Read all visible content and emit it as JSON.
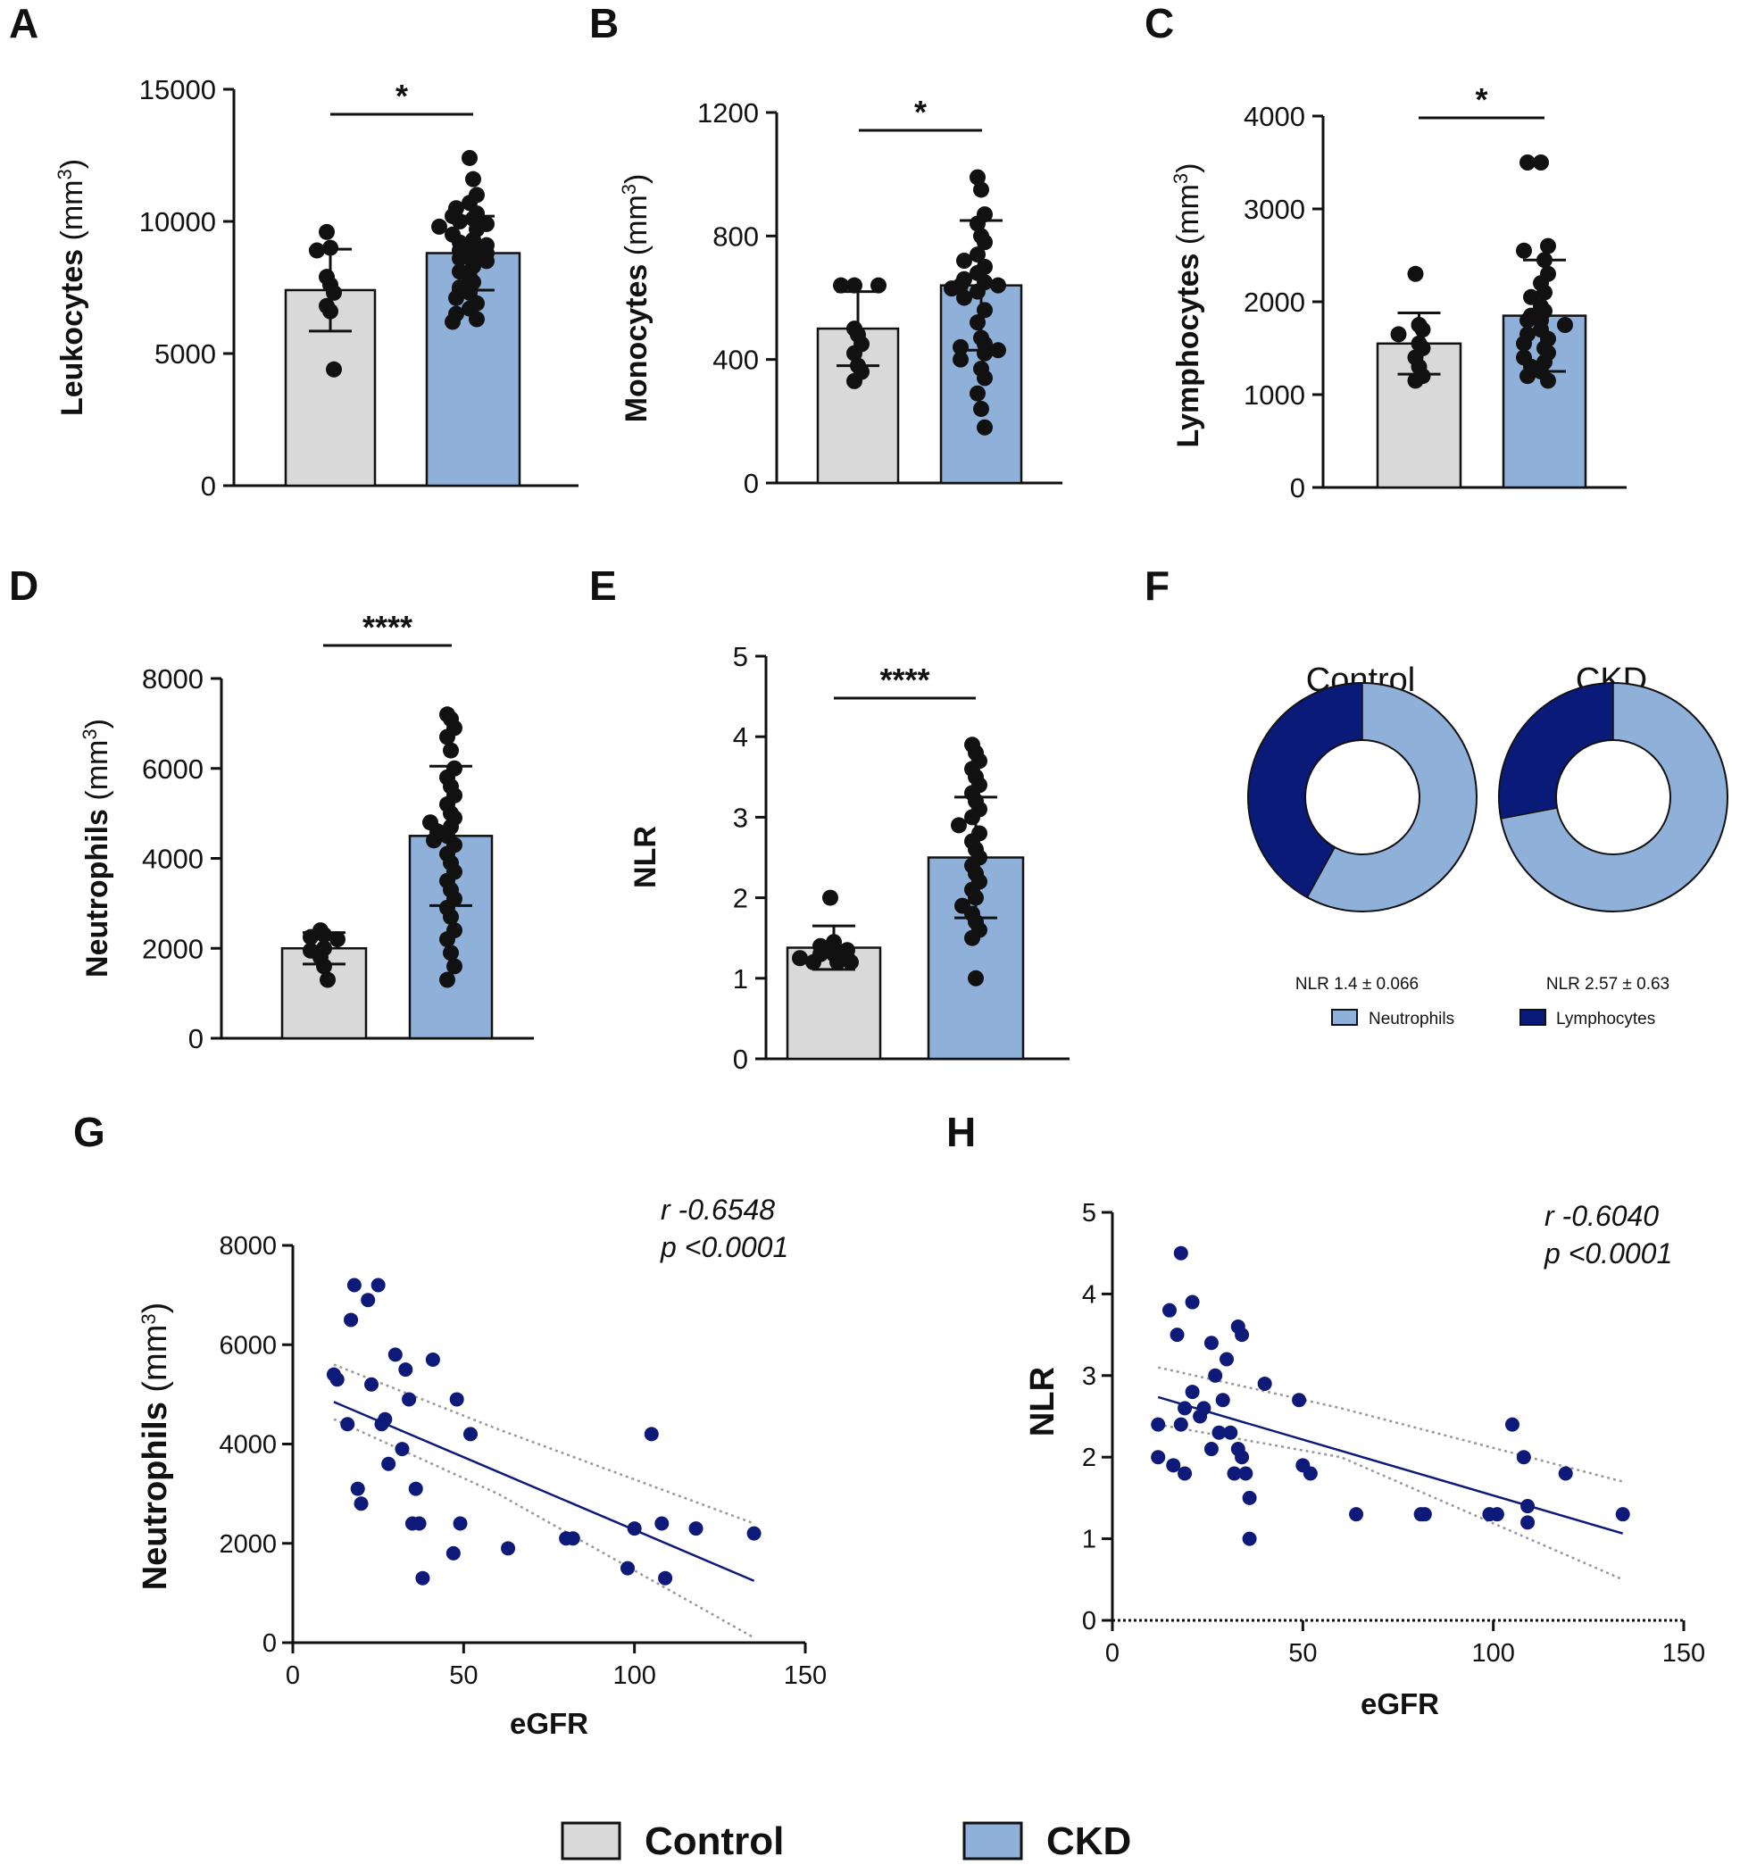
{
  "colors": {
    "control": "#d9d9d9",
    "ckd": "#8fb1d9",
    "point": "#111111",
    "scatter": "#0e1a7a",
    "neutrophils": "#8fb1d9",
    "lymphocytes": "#0a1a78"
  },
  "legend": {
    "control": "Control",
    "ckd": "CKD"
  },
  "chart_data": [
    {
      "id": "A",
      "type": "bar",
      "panel_label": "A",
      "ylabel": "Leukocytes",
      "yunit": "(mm",
      "yunit_exp": "3",
      "yunit_close": ")",
      "ylim": [
        0,
        15000
      ],
      "yticks": [
        0,
        5000,
        10000,
        15000
      ],
      "tick_labels": [
        "0",
        "5000",
        "10000",
        "15000"
      ],
      "categories": [
        "Control",
        "CKD"
      ],
      "means": [
        7400,
        8800
      ],
      "sds": [
        1550,
        1400
      ],
      "significance": "*",
      "points": [
        [
          9600,
          9000,
          8900,
          7900,
          7600,
          7300,
          6800,
          6600,
          4400
        ],
        [
          12400,
          11600,
          11000,
          10700,
          10500,
          10300,
          10200,
          10100,
          10000,
          9900,
          9800,
          9700,
          9500,
          9300,
          9200,
          9100,
          9000,
          8900,
          8800,
          8700,
          8600,
          8500,
          8300,
          8100,
          7900,
          7700,
          7500,
          7300,
          7100,
          6900,
          6700,
          6500,
          6300,
          6200
        ]
      ]
    },
    {
      "id": "B",
      "type": "bar",
      "panel_label": "B",
      "ylabel": "Monocytes",
      "yunit": "(mm",
      "yunit_exp": "3",
      "yunit_close": ")",
      "ylim": [
        0,
        1200
      ],
      "yticks": [
        0,
        400,
        800,
        1200
      ],
      "tick_labels": [
        "0",
        "400",
        "800",
        "1200"
      ],
      "categories": [
        "Control",
        "CKD"
      ],
      "means": [
        500,
        640
      ],
      "sds": [
        120,
        210
      ],
      "significance": "*",
      "points": [
        [
          640,
          640,
          640,
          500,
          480,
          450,
          420,
          380,
          360,
          330
        ],
        [
          990,
          950,
          870,
          840,
          800,
          780,
          740,
          720,
          700,
          680,
          660,
          650,
          640,
          640,
          630,
          620,
          600,
          560,
          520,
          470,
          450,
          440,
          430,
          420,
          400,
          370,
          340,
          290,
          240,
          180
        ]
      ]
    },
    {
      "id": "C",
      "type": "bar",
      "panel_label": "C",
      "ylabel": "Lymphocytes",
      "yunit": "(mm",
      "yunit_exp": "3",
      "yunit_close": ")",
      "ylim": [
        0,
        4000
      ],
      "yticks": [
        0,
        1000,
        2000,
        3000,
        4000
      ],
      "tick_labels": [
        "0",
        "1000",
        "2000",
        "3000",
        "4000"
      ],
      "categories": [
        "Control",
        "CKD"
      ],
      "means": [
        1550,
        1850
      ],
      "sds": [
        330,
        600
      ],
      "significance": "*",
      "points": [
        [
          2300,
          1750,
          1700,
          1650,
          1550,
          1500,
          1400,
          1300,
          1200,
          1150
        ],
        [
          3500,
          3500,
          2600,
          2550,
          2450,
          2300,
          2200,
          2100,
          2050,
          1950,
          1900,
          1850,
          1800,
          1800,
          1750,
          1700,
          1650,
          1600,
          1550,
          1500,
          1450,
          1400,
          1350,
          1300,
          1250,
          1200,
          1150
        ]
      ]
    },
    {
      "id": "D",
      "type": "bar",
      "panel_label": "D",
      "ylabel": "Neutrophils",
      "yunit": "(mm",
      "yunit_exp": "3",
      "yunit_close": ")",
      "ylim": [
        0,
        8000
      ],
      "yticks": [
        0,
        2000,
        4000,
        6000,
        8000
      ],
      "tick_labels": [
        "0",
        "2000",
        "4000",
        "6000",
        "8000"
      ],
      "categories": [
        "Control",
        "CKD"
      ],
      "means": [
        2000,
        4500
      ],
      "sds": [
        350,
        1550
      ],
      "significance": "****",
      "points": [
        [
          2400,
          2300,
          2250,
          2200,
          2000,
          1950,
          1800,
          1600,
          1300
        ],
        [
          7200,
          7100,
          6900,
          6700,
          6400,
          6000,
          5800,
          5600,
          5400,
          5200,
          5000,
          4900,
          4800,
          4700,
          4600,
          4500,
          4400,
          4300,
          4100,
          3900,
          3700,
          3500,
          3300,
          3100,
          2900,
          2700,
          2400,
          2200,
          1900,
          1600,
          1300
        ]
      ]
    },
    {
      "id": "E",
      "type": "bar",
      "panel_label": "E",
      "ylabel": "NLR",
      "yunit": "",
      "yunit_exp": "",
      "yunit_close": "",
      "ylim": [
        0,
        5
      ],
      "yticks": [
        0,
        1,
        2,
        3,
        4,
        5
      ],
      "tick_labels": [
        "0",
        "1",
        "2",
        "3",
        "4",
        "5"
      ],
      "categories": [
        "Control",
        "CKD"
      ],
      "means": [
        1.38,
        2.5
      ],
      "sds": [
        0.27,
        0.75
      ],
      "significance": "****",
      "points": [
        [
          2.0,
          1.45,
          1.4,
          1.35,
          1.3,
          1.3,
          1.25,
          1.25,
          1.2,
          1.2,
          1.2
        ],
        [
          3.9,
          3.8,
          3.7,
          3.6,
          3.5,
          3.4,
          3.3,
          3.2,
          3.1,
          3.0,
          2.9,
          2.8,
          2.7,
          2.6,
          2.5,
          2.4,
          2.3,
          2.2,
          2.1,
          2.0,
          1.9,
          1.8,
          1.7,
          1.6,
          1.5,
          1.0
        ]
      ]
    },
    {
      "id": "F",
      "type": "pie",
      "panel_label": "F",
      "charts": [
        {
          "title": "Control",
          "neutrophils_pct": 58,
          "lymphocytes_pct": 42,
          "note": "NLR 1.4 ± 0.066"
        },
        {
          "title": "CKD",
          "neutrophils_pct": 72,
          "lymphocytes_pct": 28,
          "note": "NLR 2.57 ± 0.63"
        }
      ],
      "legend": [
        "Neutrophils",
        "Lymphocytes"
      ]
    },
    {
      "id": "G",
      "type": "scatter",
      "panel_label": "G",
      "xlabel": "eGFR",
      "ylabel": "Neutrophils",
      "yunit": "(mm",
      "yunit_exp": "3",
      "yunit_close": ")",
      "xlim": [
        0,
        150
      ],
      "ylim": [
        0,
        8000
      ],
      "xticks": [
        0,
        50,
        100,
        150
      ],
      "yticks": [
        0,
        2000,
        4000,
        6000,
        8000
      ],
      "xtick_labels": [
        "0",
        "50",
        "100",
        "150"
      ],
      "ytick_labels": [
        "0",
        "2000",
        "4000",
        "6000",
        "8000"
      ],
      "r_text": "r -0.6548",
      "p_text": "p <0.0001",
      "fit": {
        "slope": -29.3,
        "intercept": 5200
      },
      "ci": {
        "upper": [
          [
            12,
            5600
          ],
          [
            60,
            4300
          ],
          [
            135,
            2400
          ]
        ],
        "lower": [
          [
            12,
            4500
          ],
          [
            60,
            3000
          ],
          [
            135,
            100
          ]
        ]
      },
      "points": [
        [
          12,
          5400
        ],
        [
          13,
          5300
        ],
        [
          16,
          4400
        ],
        [
          17,
          6500
        ],
        [
          18,
          7200
        ],
        [
          19,
          3100
        ],
        [
          20,
          2800
        ],
        [
          22,
          6900
        ],
        [
          23,
          5200
        ],
        [
          25,
          7200
        ],
        [
          26,
          4400
        ],
        [
          27,
          4500
        ],
        [
          28,
          3600
        ],
        [
          30,
          5800
        ],
        [
          32,
          3900
        ],
        [
          33,
          5500
        ],
        [
          34,
          4900
        ],
        [
          35,
          2400
        ],
        [
          36,
          3100
        ],
        [
          37,
          2400
        ],
        [
          38,
          1300
        ],
        [
          41,
          5700
        ],
        [
          47,
          1800
        ],
        [
          48,
          4900
        ],
        [
          49,
          2400
        ],
        [
          52,
          4200
        ],
        [
          63,
          1900
        ],
        [
          80,
          2100
        ],
        [
          82,
          2100
        ],
        [
          98,
          1500
        ],
        [
          100,
          2300
        ],
        [
          105,
          4200
        ],
        [
          108,
          2400
        ],
        [
          109,
          1300
        ],
        [
          118,
          2300
        ],
        [
          135,
          2200
        ]
      ]
    },
    {
      "id": "H",
      "type": "scatter",
      "panel_label": "H",
      "xlabel": "eGFR",
      "ylabel": "NLR",
      "xlim": [
        0,
        150
      ],
      "ylim": [
        0,
        5
      ],
      "xticks": [
        0,
        50,
        100,
        150
      ],
      "yticks": [
        0,
        1,
        2,
        3,
        4,
        5
      ],
      "xtick_labels": [
        "0",
        "50",
        "100",
        "150"
      ],
      "ytick_labels": [
        "0",
        "1",
        "2",
        "3",
        "4",
        "5"
      ],
      "r_text": "r -0.6040",
      "p_text": "p <0.0001",
      "fit": {
        "slope": -0.0137,
        "intercept": 2.9
      },
      "ci": {
        "upper": [
          [
            12,
            3.1
          ],
          [
            60,
            2.6
          ],
          [
            134,
            1.7
          ]
        ],
        "lower": [
          [
            12,
            2.4
          ],
          [
            60,
            2.0
          ],
          [
            134,
            0.5
          ]
        ]
      },
      "points": [
        [
          12,
          2.4
        ],
        [
          12,
          2.0
        ],
        [
          15,
          3.8
        ],
        [
          16,
          1.9
        ],
        [
          17,
          3.5
        ],
        [
          18,
          4.5
        ],
        [
          18,
          2.4
        ],
        [
          19,
          1.8
        ],
        [
          19,
          2.6
        ],
        [
          21,
          3.9
        ],
        [
          21,
          2.8
        ],
        [
          23,
          2.5
        ],
        [
          24,
          2.6
        ],
        [
          26,
          2.1
        ],
        [
          26,
          3.4
        ],
        [
          27,
          3.0
        ],
        [
          28,
          2.3
        ],
        [
          29,
          2.7
        ],
        [
          30,
          3.2
        ],
        [
          31,
          2.3
        ],
        [
          32,
          1.8
        ],
        [
          33,
          3.6
        ],
        [
          33,
          2.1
        ],
        [
          34,
          2.0
        ],
        [
          34,
          3.5
        ],
        [
          35,
          1.8
        ],
        [
          36,
          1.5
        ],
        [
          36,
          1.0
        ],
        [
          40,
          2.9
        ],
        [
          49,
          2.7
        ],
        [
          50,
          1.9
        ],
        [
          52,
          1.8
        ],
        [
          64,
          1.3
        ],
        [
          81,
          1.3
        ],
        [
          82,
          1.3
        ],
        [
          99,
          1.3
        ],
        [
          101,
          1.3
        ],
        [
          105,
          2.4
        ],
        [
          108,
          2.0
        ],
        [
          109,
          1.4
        ],
        [
          109,
          1.2
        ],
        [
          119,
          1.8
        ],
        [
          134,
          1.3
        ]
      ]
    }
  ]
}
